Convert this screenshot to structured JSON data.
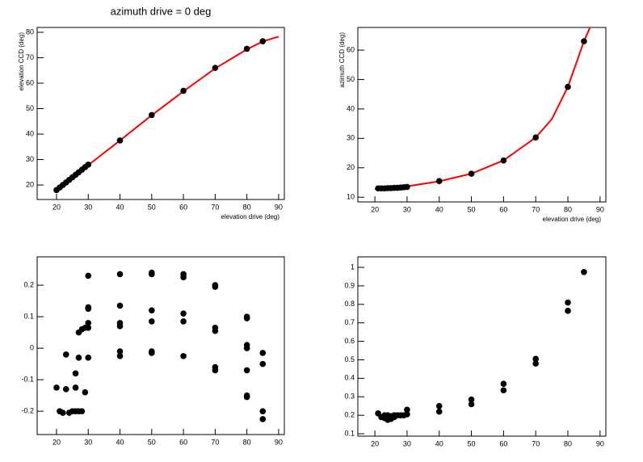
{
  "chart_data": [
    {
      "type": "scatter",
      "title": "azimuth drive = 0 deg",
      "xlabel": "elevation drive (deg)",
      "ylabel": "elevation CCD (deg)",
      "xlim": [
        13.9,
        91.8
      ],
      "ylim": [
        14.3,
        81.9
      ],
      "xticks": [
        20,
        30,
        40,
        50,
        60,
        70,
        80,
        90
      ],
      "yticks": [
        20,
        30,
        40,
        50,
        60,
        70,
        80
      ],
      "color": "#000000",
      "x": [
        20,
        21,
        22,
        23,
        24,
        25,
        26,
        27,
        28,
        29,
        30,
        40,
        50,
        60,
        70,
        80,
        85
      ],
      "values": [
        18,
        19,
        20,
        21,
        22,
        23,
        24,
        25,
        26,
        27,
        28,
        37.5,
        47.5,
        57,
        66,
        73.5,
        76.5
      ],
      "fit": {
        "color": "#ff0000",
        "x": [
          20,
          30,
          40,
          50,
          60,
          70,
          80,
          85,
          90
        ],
        "values": [
          18,
          27.8,
          37.5,
          47.4,
          56.8,
          65.8,
          73.3,
          76.4,
          78.3
        ]
      }
    },
    {
      "type": "scatter",
      "xlabel": "elevation drive (deg)",
      "ylabel": "azimuth CCD (deg)",
      "xlim": [
        14.7,
        91.8
      ],
      "ylim": [
        8.4,
        67.7
      ],
      "xticks": [
        20,
        30,
        40,
        50,
        60,
        70,
        80,
        90
      ],
      "yticks": [
        10,
        20,
        30,
        40,
        50,
        60
      ],
      "color": "#000000",
      "x": [
        21,
        22,
        23,
        24,
        25,
        26,
        27,
        28,
        29,
        30,
        40,
        50,
        60,
        70,
        80,
        85
      ],
      "values": [
        13,
        13,
        13,
        13.1,
        13.1,
        13.2,
        13.2,
        13.3,
        13.4,
        13.5,
        15.5,
        18,
        22.5,
        30.3,
        47.5,
        63
      ],
      "fit": {
        "color": "#ff0000",
        "x": [
          20,
          30,
          40,
          50,
          60,
          70,
          75,
          80,
          85,
          86.8
        ],
        "values": [
          12.8,
          13.7,
          15.4,
          18,
          22.5,
          30.3,
          36.5,
          47.5,
          63,
          67.5
        ]
      }
    },
    {
      "type": "scatter",
      "xlim": [
        13.9,
        91.8
      ],
      "ylim": [
        -0.274,
        0.29
      ],
      "xticks": [
        20,
        30,
        40,
        50,
        60,
        70,
        80,
        90
      ],
      "yticks": [
        -0.2,
        -0.1,
        0,
        0.1,
        0.2
      ],
      "color": "#000000",
      "x": [
        20,
        21,
        22,
        23,
        23,
        24,
        25,
        26,
        26,
        26,
        27,
        27,
        27,
        28,
        28,
        29,
        29,
        30,
        30,
        30,
        30,
        30,
        30,
        40,
        40,
        40,
        40,
        40,
        40,
        50,
        50,
        50,
        50,
        50,
        50,
        60,
        60,
        60,
        60,
        60,
        70,
        70,
        70,
        70,
        70,
        70,
        80,
        80,
        80,
        80,
        80,
        80,
        80,
        85,
        85,
        85,
        85
      ],
      "values": [
        -0.125,
        -0.2,
        -0.205,
        -0.13,
        -0.02,
        -0.205,
        -0.2,
        -0.2,
        -0.08,
        -0.125,
        -0.03,
        0.05,
        -0.2,
        0.06,
        -0.2,
        0.065,
        -0.14,
        0.23,
        0.13,
        0.125,
        0.08,
        0.065,
        -0.03,
        0.235,
        0.135,
        0.08,
        0.07,
        -0.01,
        -0.025,
        0.24,
        0.235,
        0.12,
        0.085,
        -0.01,
        -0.015,
        0.235,
        0.225,
        0.11,
        0.085,
        -0.025,
        0.2,
        0.195,
        0.065,
        0.055,
        -0.06,
        -0.07,
        0.1,
        0.095,
        0.01,
        0,
        -0.07,
        -0.15,
        -0.155,
        -0.015,
        -0.05,
        -0.2,
        -0.225
      ]
    },
    {
      "type": "scatter",
      "xlim": [
        14.7,
        91.8
      ],
      "ylim": [
        0.087,
        1.057
      ],
      "xticks": [
        20,
        30,
        40,
        50,
        60,
        70,
        80,
        90
      ],
      "yticks": [
        0.1,
        0.2,
        0.3,
        0.4,
        0.5,
        0.6,
        0.7,
        0.8,
        0.9,
        1
      ],
      "color": "#000000",
      "x": [
        21,
        22,
        23,
        23,
        24,
        24,
        25,
        25,
        26,
        26,
        27,
        28,
        29,
        30,
        30,
        40,
        40,
        50,
        50,
        60,
        60,
        70,
        70,
        80,
        80,
        85
      ],
      "values": [
        0.21,
        0.19,
        0.2,
        0.185,
        0.175,
        0.2,
        0.18,
        0.195,
        0.19,
        0.2,
        0.2,
        0.2,
        0.2,
        0.23,
        0.205,
        0.25,
        0.22,
        0.285,
        0.26,
        0.37,
        0.335,
        0.505,
        0.48,
        0.81,
        0.765,
        0.975
      ]
    }
  ]
}
